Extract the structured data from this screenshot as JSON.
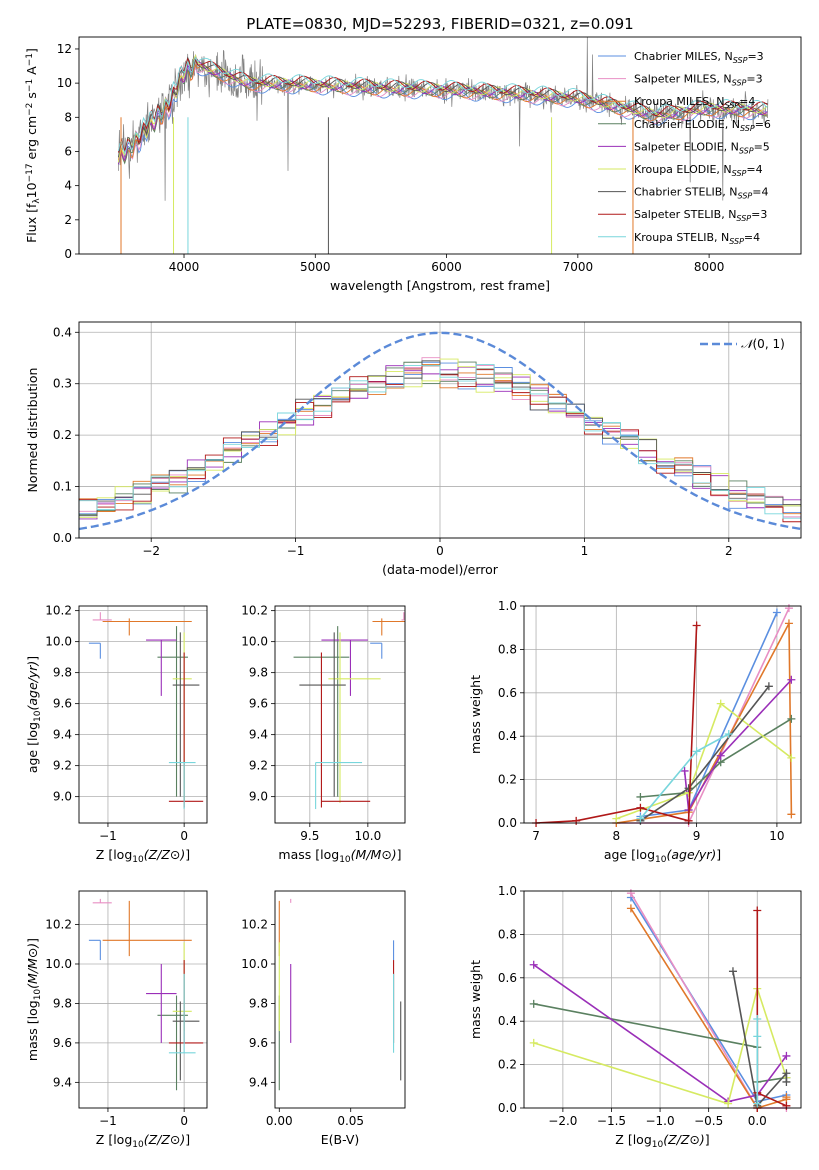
{
  "figure_title": "PLATE=0830, MJD=52293, FIBERID=0321, z=0.091",
  "colors": {
    "Chabrier MILES": "#5b8fe0",
    "Salpeter MILES": "#e88fc4",
    "Kroupa MILES": "#e0782a",
    "Chabrier ELODIE": "#5a8060",
    "Salpeter ELODIE": "#9a2fb8",
    "Kroupa ELODIE": "#d6ea62",
    "Chabrier STELIB": "#555555",
    "Salpeter STELIB": "#b01818",
    "Kroupa STELIB": "#78d6dc",
    "normal_curve": "#5b8ad8",
    "data_spectrum": "#808080"
  },
  "chart_data": [
    {
      "id": "spectrum",
      "type": "line",
      "xlabel": "wavelength [Angstrom, rest frame]",
      "ylabel": "Flux [f_λ 10^-17 erg cm^-2 s^-1 A^-1]",
      "xlim": [
        3200,
        8700
      ],
      "ylim": [
        0,
        12.7
      ],
      "xticks": [
        4000,
        5000,
        6000,
        7000,
        8000
      ],
      "yticks": [
        0,
        2,
        4,
        6,
        8,
        10,
        12
      ],
      "grid": false,
      "legend_position": "upper-right",
      "legend": [
        {
          "name": "Chabrier MILES",
          "nssp": "3"
        },
        {
          "name": "Salpeter MILES",
          "nssp": "3"
        },
        {
          "name": "Kroupa MILES",
          "nssp": "4"
        },
        {
          "name": "Chabrier ELODIE",
          "nssp": "6"
        },
        {
          "name": "Salpeter ELODIE",
          "nssp": "5"
        },
        {
          "name": "Kroupa ELODIE",
          "nssp": "4"
        },
        {
          "name": "Chabrier STELIB",
          "nssp": "4"
        },
        {
          "name": "Salpeter STELIB",
          "nssp": "3"
        },
        {
          "name": "Kroupa STELIB",
          "nssp": "4"
        }
      ],
      "model_continuum": {
        "x": [
          3500,
          3600,
          3750,
          3900,
          4000,
          4100,
          4300,
          4500,
          5000,
          5500,
          6000,
          6500,
          7000,
          7300,
          7600,
          8000,
          8450
        ],
        "y": [
          5.7,
          6.3,
          7.6,
          8.9,
          10.6,
          11.1,
          10.5,
          10.0,
          9.9,
          9.7,
          9.6,
          9.4,
          9.1,
          8.6,
          8.1,
          8.5,
          8.4
        ]
      }
    },
    {
      "id": "residuals",
      "type": "histogram",
      "xlabel": "(data-model)/error",
      "ylabel": "Normed distribution",
      "xlim": [
        -2.5,
        2.5
      ],
      "ylim": [
        0,
        0.42
      ],
      "xticks": [
        -2,
        -1,
        0,
        1,
        2
      ],
      "yticks": [
        0.0,
        0.1,
        0.2,
        0.3,
        0.4
      ],
      "grid": true,
      "bins": 40,
      "legend_position": "upper-right",
      "legend": [
        {
          "label_math": "N(0, 1)",
          "style": "dashed"
        }
      ]
    },
    {
      "id": "age_vs_Z",
      "type": "errorbar",
      "xlabel": "Z [log10(Z/Z⊙)]",
      "ylabel": "age [log10(age/yr)]",
      "xlim": [
        -1.38,
        0.3
      ],
      "ylim": [
        8.83,
        10.23
      ],
      "xticks": [
        -1,
        0
      ],
      "yticks": [
        9.0,
        9.2,
        9.4,
        9.6,
        9.8,
        10.0,
        10.2
      ],
      "grid": true,
      "points": [
        {
          "model": "Chabrier MILES",
          "x": -1.1,
          "xerr": [
            0.15,
            0.0
          ],
          "y": 9.99,
          "yerr": [
            0.1,
            0.0
          ]
        },
        {
          "model": "Salpeter MILES",
          "x": -1.1,
          "xerr": [
            0.1,
            0.15
          ],
          "y": 10.14,
          "yerr": [
            0.0,
            0.05
          ]
        },
        {
          "model": "Kroupa MILES",
          "x": -0.72,
          "xerr": [
            0.35,
            0.82
          ],
          "y": 10.13,
          "yerr": [
            0.09,
            0.02
          ]
        },
        {
          "model": "Chabrier ELODIE",
          "x": -0.1,
          "xerr": [
            0.25,
            0.15
          ],
          "y": 9.9,
          "yerr": [
            0.9,
            0.2
          ]
        },
        {
          "model": "Salpeter ELODIE",
          "x": -0.3,
          "xerr": [
            0.2,
            0.2
          ],
          "y": 10.01,
          "yerr": [
            0.36,
            0.0
          ]
        },
        {
          "model": "Kroupa ELODIE",
          "x": 0.0,
          "xerr": [
            0.15,
            0.1
          ],
          "y": 9.76,
          "yerr": [
            0.8,
            0.3
          ]
        },
        {
          "model": "Chabrier STELIB",
          "x": -0.05,
          "xerr": [
            0.1,
            0.25
          ],
          "y": 9.72,
          "yerr": [
            0.72,
            0.34
          ]
        },
        {
          "model": "Salpeter STELIB",
          "x": 0.0,
          "xerr": [
            0.2,
            0.25
          ],
          "y": 8.97,
          "yerr": [
            0.04,
            0.96
          ]
        },
        {
          "model": "Kroupa STELIB",
          "x": 0.0,
          "xerr": [
            0.2,
            0.15
          ],
          "y": 9.22,
          "yerr": [
            0.3,
            0.0
          ]
        }
      ]
    },
    {
      "id": "age_vs_mass",
      "type": "errorbar",
      "xlabel": "mass [log10(M/M⊙)]",
      "ylabel": "",
      "xlim": [
        9.2,
        10.32
      ],
      "ylim": [
        8.83,
        10.23
      ],
      "xticks": [
        9.5,
        10.0
      ],
      "yticks": [
        9.0,
        9.2,
        9.4,
        9.6,
        9.8,
        10.0,
        10.2
      ],
      "grid": true,
      "points": [
        {
          "model": "Chabrier MILES",
          "x": 10.12,
          "xerr": [
            0.1,
            0.0
          ],
          "y": 9.99,
          "yerr": [
            0.1,
            0.0
          ]
        },
        {
          "model": "Salpeter MILES",
          "x": 10.31,
          "xerr": [
            0.02,
            0.0
          ],
          "y": 10.14,
          "yerr": [
            0.0,
            0.05
          ]
        },
        {
          "model": "Kroupa MILES",
          "x": 10.12,
          "xerr": [
            0.08,
            0.2
          ],
          "y": 10.13,
          "yerr": [
            0.09,
            0.02
          ]
        },
        {
          "model": "Chabrier ELODIE",
          "x": 9.74,
          "xerr": [
            0.38,
            0.1
          ],
          "y": 9.9,
          "yerr": [
            0.9,
            0.2
          ]
        },
        {
          "model": "Salpeter ELODIE",
          "x": 9.85,
          "xerr": [
            0.25,
            0.15
          ],
          "y": 10.01,
          "yerr": [
            0.36,
            0.0
          ]
        },
        {
          "model": "Kroupa ELODIE",
          "x": 9.76,
          "xerr": [
            0.1,
            0.35
          ],
          "y": 9.76,
          "yerr": [
            0.8,
            0.3
          ]
        },
        {
          "model": "Chabrier STELIB",
          "x": 9.71,
          "xerr": [
            0.3,
            0.1
          ],
          "y": 9.72,
          "yerr": [
            0.72,
            0.34
          ]
        },
        {
          "model": "Salpeter STELIB",
          "x": 9.6,
          "xerr": [
            0.0,
            0.42
          ],
          "y": 8.97,
          "yerr": [
            0.04,
            0.96
          ]
        },
        {
          "model": "Kroupa STELIB",
          "x": 9.55,
          "xerr": [
            0.0,
            0.4
          ],
          "y": 9.22,
          "yerr": [
            0.3,
            0.0
          ]
        }
      ]
    },
    {
      "id": "mass_weight_vs_age",
      "type": "line",
      "xlabel": "age [log10(age/yr)]",
      "ylabel": "mass weight",
      "xlim": [
        6.85,
        10.3
      ],
      "ylim": [
        0,
        1.0
      ],
      "xticks": [
        7,
        8,
        9,
        10
      ],
      "yticks": [
        0.0,
        0.2,
        0.4,
        0.6,
        0.8,
        1.0
      ],
      "grid": true,
      "series": [
        {
          "model": "Chabrier MILES",
          "x": [
            8.3,
            8.9,
            10.0
          ],
          "y": [
            0.03,
            0.06,
            0.97
          ]
        },
        {
          "model": "Salpeter MILES",
          "x": [
            8.0,
            8.9,
            10.15
          ],
          "y": [
            0.0,
            0.0,
            0.99
          ]
        },
        {
          "model": "Kroupa MILES",
          "x": [
            8.0,
            8.9,
            10.15,
            10.18
          ],
          "y": [
            0.0,
            0.05,
            0.92,
            0.04
          ]
        },
        {
          "model": "Chabrier ELODIE",
          "x": [
            8.3,
            8.9,
            9.3,
            10.18
          ],
          "y": [
            0.12,
            0.14,
            0.28,
            0.48
          ]
        },
        {
          "model": "Salpeter ELODIE",
          "x": [
            8.85,
            8.9,
            9.3,
            10.18
          ],
          "y": [
            0.24,
            0.06,
            0.31,
            0.66
          ]
        },
        {
          "model": "Kroupa ELODIE",
          "x": [
            8.0,
            8.9,
            9.3,
            10.18
          ],
          "y": [
            0.02,
            0.14,
            0.55,
            0.3
          ]
        },
        {
          "model": "Chabrier STELIB",
          "x": [
            8.3,
            8.9,
            9.9
          ],
          "y": [
            0.01,
            0.16,
            0.63
          ]
        },
        {
          "model": "Salpeter STELIB",
          "x": [
            7.0,
            7.5,
            8.3,
            8.9,
            9.0
          ],
          "y": [
            0.0,
            0.01,
            0.07,
            0.01,
            0.91
          ]
        },
        {
          "model": "Kroupa STELIB",
          "x": [
            8.3,
            9.0,
            9.4
          ],
          "y": [
            0.02,
            0.33,
            0.41
          ]
        }
      ]
    },
    {
      "id": "mass_vs_Z",
      "type": "errorbar",
      "xlabel": "Z [log10(Z/Z⊙)]",
      "ylabel": "mass [log10(M/M⊙)]",
      "xlim": [
        -1.38,
        0.3
      ],
      "ylim": [
        9.27,
        10.37
      ],
      "xticks": [
        -1,
        0
      ],
      "yticks": [
        9.4,
        9.6,
        9.8,
        10.0,
        10.2
      ],
      "grid": true,
      "points": [
        {
          "model": "Chabrier MILES",
          "x": -1.1,
          "xerr": [
            0.15,
            0.0
          ],
          "y": 10.12,
          "yerr": [
            0.1,
            0.0
          ]
        },
        {
          "model": "Salpeter MILES",
          "x": -1.1,
          "xerr": [
            0.1,
            0.15
          ],
          "y": 10.31,
          "yerr": [
            0.0,
            0.02
          ]
        },
        {
          "model": "Kroupa MILES",
          "x": -0.72,
          "xerr": [
            0.35,
            0.82
          ],
          "y": 10.12,
          "yerr": [
            0.08,
            0.2
          ]
        },
        {
          "model": "Chabrier ELODIE",
          "x": -0.1,
          "xerr": [
            0.25,
            0.15
          ],
          "y": 9.74,
          "yerr": [
            0.38,
            0.1
          ]
        },
        {
          "model": "Salpeter ELODIE",
          "x": -0.3,
          "xerr": [
            0.2,
            0.2
          ],
          "y": 9.85,
          "yerr": [
            0.25,
            0.15
          ]
        },
        {
          "model": "Kroupa ELODIE",
          "x": 0.0,
          "xerr": [
            0.15,
            0.1
          ],
          "y": 9.76,
          "yerr": [
            0.1,
            0.35
          ]
        },
        {
          "model": "Chabrier STELIB",
          "x": -0.05,
          "xerr": [
            0.1,
            0.25
          ],
          "y": 9.71,
          "yerr": [
            0.3,
            0.1
          ]
        },
        {
          "model": "Salpeter STELIB",
          "x": 0.0,
          "xerr": [
            0.2,
            0.25
          ],
          "y": 9.6,
          "yerr": [
            0.0,
            0.42
          ]
        },
        {
          "model": "Kroupa STELIB",
          "x": 0.0,
          "xerr": [
            0.2,
            0.15
          ],
          "y": 9.55,
          "yerr": [
            0.0,
            0.4
          ]
        }
      ]
    },
    {
      "id": "mass_vs_EBV",
      "type": "errorbar",
      "xlabel": "E(B-V)",
      "ylabel": "",
      "xlim": [
        -0.003,
        0.088
      ],
      "ylim": [
        9.27,
        10.37
      ],
      "xticks": [
        0.0,
        0.05
      ],
      "yticks": [
        9.4,
        9.6,
        9.8,
        10.0,
        10.2
      ],
      "grid": false,
      "points": [
        {
          "model": "Chabrier MILES",
          "x": 0.08,
          "y": 10.12,
          "yerr": [
            0.1,
            0.0
          ]
        },
        {
          "model": "Salpeter MILES",
          "x": 0.008,
          "y": 10.31,
          "yerr": [
            0.0,
            0.02
          ]
        },
        {
          "model": "Kroupa MILES",
          "x": 0.0,
          "y": 10.12,
          "yerr": [
            0.08,
            0.2
          ]
        },
        {
          "model": "Chabrier ELODIE",
          "x": 0.0,
          "y": 9.74,
          "yerr": [
            0.38,
            0.1
          ]
        },
        {
          "model": "Salpeter ELODIE",
          "x": 0.008,
          "y": 9.85,
          "yerr": [
            0.25,
            0.15
          ]
        },
        {
          "model": "Kroupa ELODIE",
          "x": 0.0,
          "y": 9.76,
          "yerr": [
            0.1,
            0.35
          ]
        },
        {
          "model": "Chabrier STELIB",
          "x": 0.085,
          "y": 9.71,
          "yerr": [
            0.3,
            0.1
          ]
        },
        {
          "model": "Salpeter STELIB",
          "x": 0.08,
          "y": 9.6,
          "yerr": [
            0.0,
            0.42
          ]
        },
        {
          "model": "Kroupa STELIB",
          "x": 0.08,
          "y": 9.55,
          "yerr": [
            0.0,
            0.4
          ]
        }
      ]
    },
    {
      "id": "mass_weight_vs_Z",
      "type": "line",
      "xlabel": "Z [log10(Z/Z⊙)]",
      "ylabel": "mass weight",
      "xlim": [
        -2.4,
        0.45
      ],
      "ylim": [
        0,
        1.0
      ],
      "xticks": [
        -2.0,
        -1.5,
        -1.0,
        -0.5,
        0.0
      ],
      "yticks": [
        0.0,
        0.2,
        0.4,
        0.6,
        0.8,
        1.0
      ],
      "grid": true,
      "series": [
        {
          "model": "Chabrier MILES",
          "x": [
            -1.3,
            0.0,
            0.3
          ],
          "y": [
            0.97,
            0.03,
            0.06
          ]
        },
        {
          "model": "Salpeter MILES",
          "x": [
            -1.3,
            0.0,
            0.3
          ],
          "y": [
            0.99,
            0.0,
            0.0
          ]
        },
        {
          "model": "Kroupa MILES",
          "x": [
            -1.3,
            0.0,
            0.3,
            0.3
          ],
          "y": [
            0.92,
            0.0,
            0.04,
            0.05
          ]
        },
        {
          "model": "Chabrier ELODIE",
          "x": [
            -2.3,
            0.0,
            0.0,
            0.3
          ],
          "y": [
            0.48,
            0.28,
            0.12,
            0.14
          ]
        },
        {
          "model": "Salpeter ELODIE",
          "x": [
            -2.3,
            -0.3,
            0.0,
            0.3
          ],
          "y": [
            0.66,
            0.03,
            0.06,
            0.24
          ]
        },
        {
          "model": "Kroupa ELODIE",
          "x": [
            -2.3,
            -0.3,
            0.0,
            0.3
          ],
          "y": [
            0.3,
            0.02,
            0.55,
            0.14
          ]
        },
        {
          "model": "Chabrier STELIB",
          "x": [
            -0.25,
            0.0,
            0.3,
            0.3
          ],
          "y": [
            0.63,
            0.01,
            0.16,
            0.12
          ]
        },
        {
          "model": "Salpeter STELIB",
          "x": [
            0.0,
            0.0,
            0.0,
            0.3
          ],
          "y": [
            0.91,
            0.0,
            0.07,
            0.01
          ]
        },
        {
          "model": "Kroupa STELIB",
          "x": [
            0.0,
            0.0,
            0.0
          ],
          "y": [
            0.41,
            0.02,
            0.33
          ]
        }
      ]
    }
  ]
}
